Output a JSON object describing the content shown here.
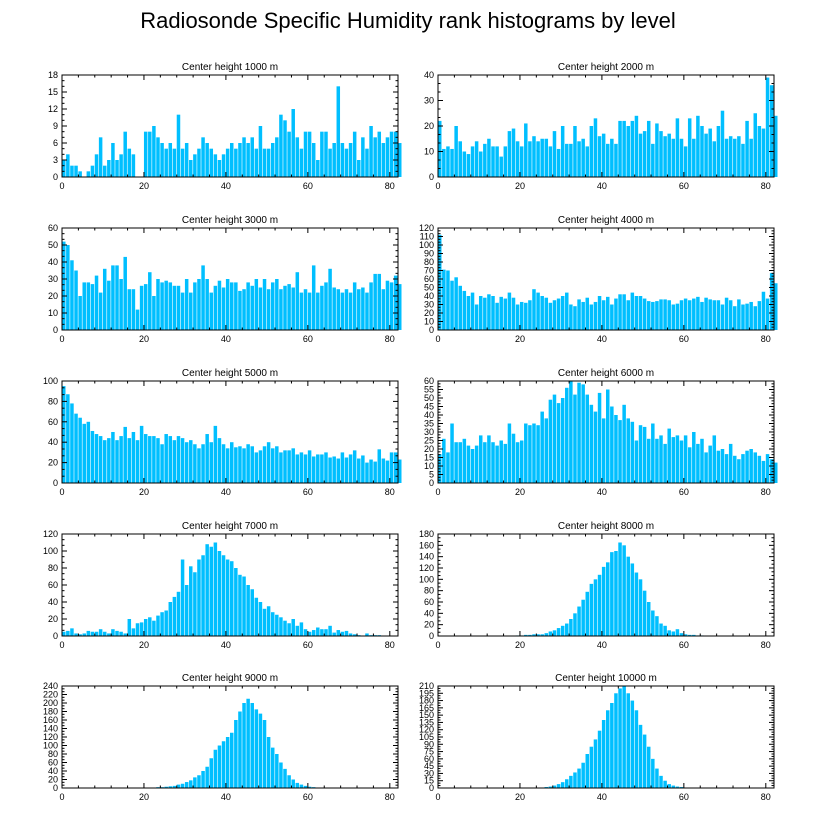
{
  "title": "Radiosonde Specific Humidity rank histograms by level",
  "colors": {
    "bar": "#00bfff",
    "bar_edge": "#ffffff",
    "axis": "#000000"
  },
  "chart_data": [
    {
      "type": "bar",
      "title": "Center height 1000 m",
      "xlim": [
        0,
        82
      ],
      "ylim": [
        0,
        18
      ],
      "xticks": [
        0,
        20,
        40,
        60,
        80
      ],
      "yticks": [
        0,
        3,
        6,
        9,
        12,
        15,
        18
      ],
      "values": [
        3,
        4,
        2,
        2,
        1,
        0,
        1,
        2,
        4,
        7,
        2,
        3,
        6,
        3,
        4,
        8,
        5,
        4,
        0,
        0,
        8,
        8,
        9,
        7,
        6,
        5,
        6,
        5,
        11,
        5,
        6,
        3,
        4,
        5,
        7,
        6,
        5,
        4,
        3,
        4,
        5,
        6,
        5,
        6,
        7,
        6,
        7,
        5,
        9,
        5,
        5,
        6,
        7,
        11,
        10,
        8,
        12,
        7,
        5,
        8,
        8,
        6,
        3,
        8,
        8,
        5,
        6,
        16,
        6,
        5,
        6,
        8,
        3,
        7,
        5,
        9,
        7,
        8,
        6,
        7,
        8,
        8,
        6
      ]
    },
    {
      "type": "bar",
      "title": "Center height 2000 m",
      "xlim": [
        0,
        82
      ],
      "ylim": [
        0,
        40
      ],
      "xticks": [
        0,
        20,
        40,
        60,
        80
      ],
      "yticks": [
        0,
        10,
        20,
        30,
        40
      ],
      "values": [
        22,
        11,
        12,
        11,
        20,
        14,
        10,
        9,
        12,
        14,
        10,
        13,
        15,
        12,
        12,
        8,
        12,
        18,
        19,
        14,
        12,
        21,
        14,
        16,
        14,
        15,
        15,
        12,
        18,
        11,
        20,
        13,
        13,
        20,
        14,
        15,
        12,
        20,
        23,
        16,
        17,
        13,
        15,
        13,
        22,
        22,
        20,
        22,
        24,
        17,
        18,
        22,
        13,
        21,
        18,
        16,
        17,
        15,
        23,
        15,
        12,
        23,
        15,
        24,
        20,
        17,
        19,
        14,
        20,
        26,
        15,
        16,
        15,
        16,
        13,
        22,
        15,
        25,
        20,
        19,
        39,
        36,
        24
      ]
    },
    {
      "type": "bar",
      "title": "Center height 3000 m",
      "xlim": [
        0,
        82
      ],
      "ylim": [
        0,
        60
      ],
      "xticks": [
        0,
        20,
        40,
        60,
        80
      ],
      "yticks": [
        0,
        10,
        20,
        30,
        40,
        50,
        60
      ],
      "values": [
        52,
        50,
        41,
        35,
        20,
        28,
        28,
        27,
        32,
        22,
        36,
        29,
        38,
        38,
        30,
        43,
        24,
        24,
        12,
        26,
        27,
        34,
        20,
        30,
        28,
        29,
        28,
        26,
        26,
        22,
        30,
        22,
        28,
        30,
        38,
        30,
        22,
        26,
        29,
        25,
        30,
        28,
        28,
        23,
        24,
        28,
        26,
        30,
        25,
        30,
        24,
        28,
        30,
        24,
        26,
        27,
        25,
        34,
        22,
        24,
        22,
        38,
        22,
        26,
        28,
        36,
        25,
        24,
        22,
        24,
        22,
        28,
        24,
        25,
        22,
        28,
        33,
        33,
        24,
        29,
        28,
        32,
        27
      ]
    },
    {
      "type": "bar",
      "title": "Center height 4000 m",
      "xlim": [
        0,
        82
      ],
      "ylim": [
        0,
        120
      ],
      "xticks": [
        0,
        20,
        40,
        60,
        80
      ],
      "yticks": [
        0,
        10,
        20,
        30,
        40,
        50,
        60,
        70,
        80,
        90,
        100,
        110,
        120
      ],
      "values": [
        112,
        71,
        70,
        58,
        62,
        52,
        46,
        40,
        44,
        30,
        40,
        38,
        42,
        40,
        32,
        39,
        37,
        44,
        38,
        30,
        33,
        32,
        35,
        48,
        44,
        40,
        38,
        32,
        35,
        37,
        40,
        44,
        30,
        28,
        36,
        33,
        38,
        30,
        33,
        40,
        35,
        39,
        30,
        37,
        42,
        42,
        35,
        44,
        40,
        40,
        37,
        34,
        33,
        34,
        36,
        36,
        35,
        30,
        31,
        35,
        37,
        35,
        37,
        39,
        33,
        38,
        36,
        35,
        35,
        30,
        38,
        35,
        28,
        36,
        30,
        31,
        33,
        28,
        34,
        45,
        37,
        67,
        55
      ]
    },
    {
      "type": "bar",
      "title": "Center height 5000 m",
      "xlim": [
        0,
        82
      ],
      "ylim": [
        0,
        100
      ],
      "xticks": [
        0,
        20,
        40,
        60,
        80
      ],
      "yticks": [
        0,
        20,
        40,
        60,
        80,
        100
      ],
      "values": [
        95,
        87,
        78,
        68,
        64,
        58,
        60,
        51,
        48,
        46,
        42,
        44,
        50,
        42,
        46,
        55,
        44,
        50,
        42,
        56,
        48,
        46,
        46,
        44,
        38,
        48,
        46,
        42,
        46,
        44,
        40,
        42,
        38,
        34,
        38,
        48,
        40,
        56,
        44,
        38,
        34,
        40,
        35,
        36,
        34,
        38,
        36,
        30,
        32,
        36,
        40,
        34,
        36,
        30,
        32,
        32,
        34,
        28,
        30,
        28,
        32,
        26,
        28,
        28,
        30,
        25,
        26,
        24,
        30,
        25,
        28,
        32,
        24,
        27,
        20,
        23,
        21,
        33,
        24,
        22,
        30,
        30,
        23
      ]
    },
    {
      "type": "bar",
      "title": "Center height 6000 m",
      "xlim": [
        0,
        82
      ],
      "ylim": [
        0,
        60
      ],
      "xticks": [
        0,
        20,
        40,
        60,
        80
      ],
      "yticks": [
        0,
        5,
        10,
        15,
        20,
        25,
        30,
        35,
        40,
        45,
        50,
        55,
        60
      ],
      "values": [
        17,
        26,
        18,
        35,
        24,
        24,
        26,
        22,
        20,
        22,
        28,
        24,
        28,
        24,
        22,
        25,
        23,
        35,
        29,
        24,
        25,
        35,
        34,
        35,
        34,
        42,
        38,
        49,
        52,
        47,
        50,
        56,
        61,
        52,
        59,
        58,
        52,
        46,
        42,
        53,
        38,
        55,
        45,
        40,
        37,
        46,
        38,
        36,
        25,
        34,
        33,
        26,
        35,
        26,
        28,
        23,
        32,
        27,
        28,
        25,
        28,
        21,
        30,
        23,
        26,
        18,
        22,
        28,
        19,
        20,
        17,
        23,
        16,
        14,
        17,
        19,
        20,
        18,
        16,
        13,
        17,
        14,
        12
      ]
    },
    {
      "type": "bar",
      "title": "Center height 7000 m",
      "xlim": [
        0,
        82
      ],
      "ylim": [
        0,
        120
      ],
      "xticks": [
        0,
        20,
        40,
        60,
        80
      ],
      "yticks": [
        0,
        20,
        40,
        60,
        80,
        100,
        120
      ],
      "values": [
        5,
        6,
        9,
        3,
        2,
        3,
        6,
        5,
        5,
        8,
        5,
        3,
        8,
        6,
        5,
        3,
        20,
        9,
        15,
        16,
        20,
        22,
        18,
        24,
        28,
        30,
        40,
        46,
        52,
        90,
        60,
        82,
        75,
        90,
        95,
        108,
        105,
        110,
        100,
        95,
        90,
        88,
        80,
        72,
        70,
        60,
        55,
        45,
        40,
        32,
        35,
        28,
        25,
        22,
        18,
        15,
        20,
        12,
        16,
        8,
        5,
        7,
        10,
        8,
        8,
        12,
        4,
        7,
        5,
        6,
        3,
        2,
        1,
        0,
        3,
        1,
        1,
        1,
        0,
        0,
        0,
        0,
        0
      ]
    },
    {
      "type": "bar",
      "title": "Center height 8000 m",
      "xlim": [
        0,
        82
      ],
      "ylim": [
        0,
        180
      ],
      "xticks": [
        0,
        20,
        40,
        60,
        80
      ],
      "yticks": [
        0,
        20,
        40,
        60,
        80,
        100,
        120,
        140,
        160,
        180
      ],
      "values": [
        0,
        0,
        0,
        0,
        0,
        0,
        0,
        0,
        0,
        0,
        0,
        0,
        0,
        0,
        0,
        0,
        0,
        0,
        0,
        1,
        1,
        2,
        2,
        3,
        3,
        3,
        5,
        8,
        10,
        14,
        18,
        22,
        30,
        40,
        52,
        64,
        78,
        92,
        100,
        108,
        122,
        130,
        148,
        150,
        165,
        160,
        140,
        128,
        112,
        100,
        80,
        60,
        45,
        35,
        22,
        18,
        10,
        8,
        12,
        5,
        3,
        2,
        2,
        1,
        1,
        0,
        0,
        0,
        0,
        0,
        0,
        0,
        0,
        0,
        0,
        0,
        0,
        0,
        0,
        0,
        0,
        0,
        0
      ]
    },
    {
      "type": "bar",
      "title": "Center height 9000 m",
      "xlim": [
        0,
        82
      ],
      "ylim": [
        0,
        240
      ],
      "xticks": [
        0,
        20,
        40,
        60,
        80
      ],
      "yticks": [
        0,
        20,
        40,
        60,
        80,
        100,
        120,
        140,
        160,
        180,
        200,
        220,
        240
      ],
      "values": [
        0,
        0,
        0,
        0,
        0,
        0,
        0,
        0,
        0,
        0,
        0,
        0,
        0,
        0,
        0,
        0,
        0,
        0,
        0,
        0,
        0,
        0,
        1,
        2,
        2,
        3,
        4,
        5,
        8,
        10,
        14,
        18,
        25,
        30,
        40,
        50,
        70,
        90,
        100,
        110,
        120,
        130,
        160,
        180,
        200,
        210,
        200,
        185,
        175,
        160,
        120,
        95,
        80,
        60,
        45,
        30,
        20,
        12,
        8,
        5,
        3,
        2,
        1,
        1,
        0,
        0,
        0,
        0,
        0,
        0,
        0,
        0,
        0,
        0,
        0,
        0,
        0,
        0,
        0,
        0,
        0,
        0,
        0
      ]
    },
    {
      "type": "bar",
      "title": "Center height 10000 m",
      "xlim": [
        0,
        82
      ],
      "ylim": [
        0,
        210
      ],
      "xticks": [
        0,
        20,
        40,
        60,
        80
      ],
      "yticks": [
        0,
        15,
        30,
        45,
        60,
        75,
        90,
        105,
        120,
        135,
        150,
        165,
        180,
        195,
        210
      ],
      "values": [
        0,
        0,
        0,
        0,
        0,
        0,
        0,
        0,
        0,
        0,
        0,
        0,
        0,
        0,
        0,
        0,
        0,
        0,
        0,
        0,
        0,
        0,
        0,
        0,
        0,
        1,
        2,
        3,
        5,
        8,
        12,
        18,
        25,
        32,
        40,
        52,
        70,
        85,
        100,
        118,
        140,
        160,
        175,
        195,
        205,
        210,
        195,
        180,
        160,
        130,
        110,
        85,
        60,
        40,
        25,
        15,
        8,
        5,
        3,
        2,
        1,
        1,
        0,
        0,
        0,
        0,
        0,
        0,
        0,
        0,
        0,
        0,
        0,
        0,
        0,
        0,
        0,
        0,
        0,
        0,
        0,
        0,
        0
      ]
    }
  ]
}
